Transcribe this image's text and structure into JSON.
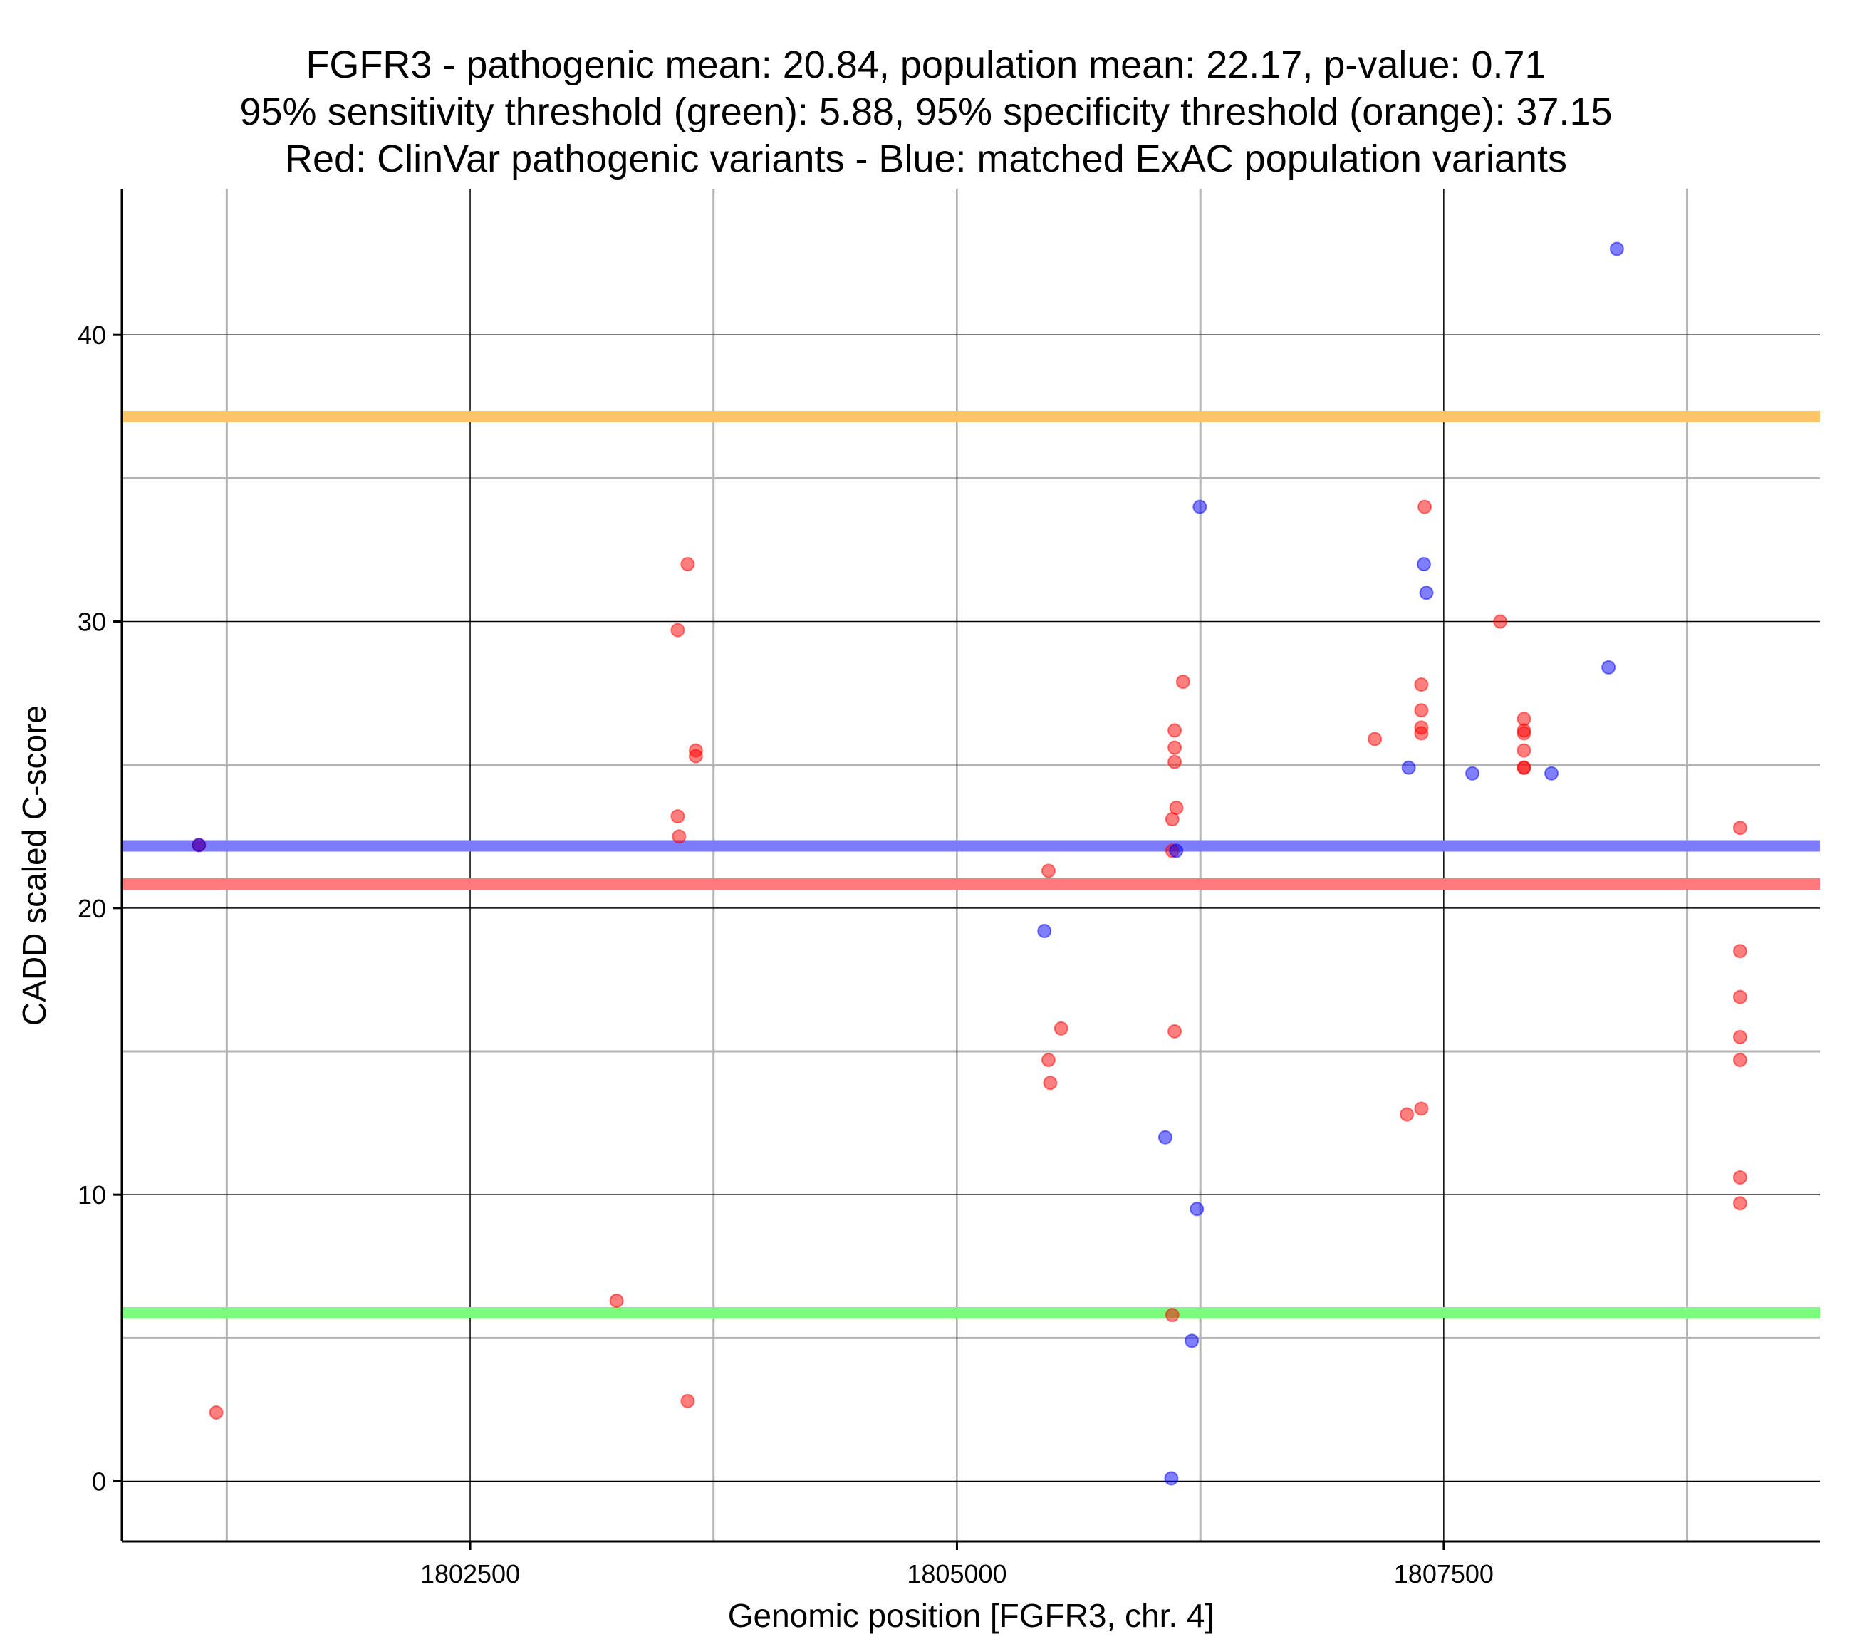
{
  "chart_data": {
    "type": "scatter",
    "title_lines": [
      "FGFR3 - pathogenic mean: 20.84, population mean: 22.17, p-value: 0.71",
      "95% sensitivity threshold (green): 5.88, 95% specificity threshold (orange): 37.15",
      "Red: ClinVar pathogenic variants - Blue: matched ExAC population variants"
    ],
    "xlabel": "Genomic position [FGFR3, chr. 4]",
    "ylabel": "CADD scaled C-score",
    "xlim": [
      1800711,
      1809432
    ],
    "ylim": [
      -2.1,
      45.1
    ],
    "x_ticks": [
      1802500,
      1805000,
      1807500
    ],
    "x_tick_labels": [
      "1802500",
      "1805000",
      "1807500"
    ],
    "x_minor_gridlines": [
      1801250,
      1803750,
      1806250,
      1808750
    ],
    "y_ticks": [
      0,
      10,
      20,
      30,
      40
    ],
    "y_tick_labels": [
      "0",
      "10",
      "20",
      "30",
      "40"
    ],
    "y_minor_gridlines": [
      5,
      15,
      25,
      35
    ],
    "grid": true,
    "hlines": [
      {
        "name": "95% specificity threshold",
        "y": 37.15,
        "color": "#ffc46a"
      },
      {
        "name": "population mean",
        "y": 22.17,
        "color": "#7b7bfb"
      },
      {
        "name": "pathogenic mean",
        "y": 20.84,
        "color": "#ff7b7b"
      },
      {
        "name": "95% sensitivity threshold",
        "y": 5.88,
        "color": "#7dfb7b"
      }
    ],
    "series": [
      {
        "name": "ClinVar pathogenic variants",
        "color": "#ff0000",
        "points": [
          [
            1801107,
            22.2
          ],
          [
            1801196,
            2.4
          ],
          [
            1803252,
            6.3
          ],
          [
            1803566,
            29.7
          ],
          [
            1803566,
            23.2
          ],
          [
            1803573,
            22.5
          ],
          [
            1803617,
            32.0
          ],
          [
            1803617,
            2.8
          ],
          [
            1803659,
            25.5
          ],
          [
            1803659,
            25.3
          ],
          [
            1805470,
            21.3
          ],
          [
            1805470,
            14.7
          ],
          [
            1805479,
            13.9
          ],
          [
            1805535,
            15.8
          ],
          [
            1806106,
            22.0
          ],
          [
            1806106,
            23.1
          ],
          [
            1806106,
            5.8
          ],
          [
            1806118,
            26.2
          ],
          [
            1806118,
            25.6
          ],
          [
            1806118,
            25.1
          ],
          [
            1806118,
            15.7
          ],
          [
            1806127,
            23.5
          ],
          [
            1806161,
            27.9
          ],
          [
            1807146,
            25.9
          ],
          [
            1807311,
            12.8
          ],
          [
            1807385,
            27.8
          ],
          [
            1807385,
            26.9
          ],
          [
            1807385,
            26.3
          ],
          [
            1807385,
            26.1
          ],
          [
            1807385,
            13.0
          ],
          [
            1807402,
            34.0
          ],
          [
            1807790,
            30.0
          ],
          [
            1807912,
            26.6
          ],
          [
            1807912,
            26.2
          ],
          [
            1807912,
            26.1
          ],
          [
            1807912,
            25.5
          ],
          [
            1807912,
            24.9
          ],
          [
            1807912,
            24.9
          ],
          [
            1809022,
            22.8
          ],
          [
            1809022,
            18.5
          ],
          [
            1809022,
            16.9
          ],
          [
            1809022,
            15.5
          ],
          [
            1809022,
            14.7
          ],
          [
            1809022,
            10.6
          ],
          [
            1809022,
            9.7
          ]
        ]
      },
      {
        "name": "matched ExAC population variants",
        "color": "#0000ff",
        "points": [
          [
            1801107,
            22.2
          ],
          [
            1805449,
            19.2
          ],
          [
            1806070,
            12.0
          ],
          [
            1806101,
            0.1
          ],
          [
            1806126,
            22.0
          ],
          [
            1806206,
            4.9
          ],
          [
            1806232,
            9.5
          ],
          [
            1806247,
            34.0
          ],
          [
            1807320,
            24.9
          ],
          [
            1807398,
            32.0
          ],
          [
            1807411,
            31.0
          ],
          [
            1807647,
            24.7
          ],
          [
            1808053,
            24.7
          ],
          [
            1808346,
            28.4
          ],
          [
            1808389,
            43.0
          ]
        ]
      }
    ]
  }
}
